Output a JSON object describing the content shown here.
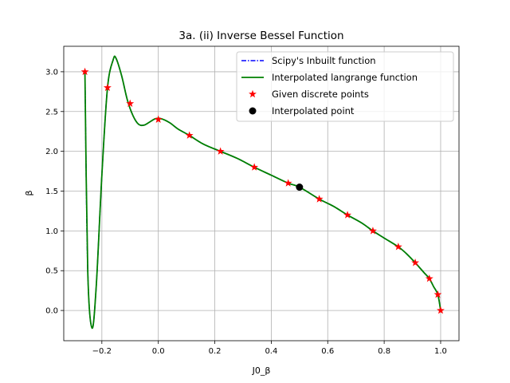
{
  "chart_data": {
    "type": "line",
    "title": "3a. (ii) Inverse Bessel Function",
    "xlabel": "J0_β",
    "ylabel": "β",
    "xlim": [
      -0.335,
      1.065
    ],
    "ylim": [
      -0.38,
      3.32
    ],
    "xticks": [
      -0.2,
      0.0,
      0.2,
      0.4,
      0.6,
      0.8,
      1.0
    ],
    "xtick_labels": [
      "−0.2",
      "0.0",
      "0.2",
      "0.4",
      "0.6",
      "0.8",
      "1.0"
    ],
    "yticks": [
      0.0,
      0.5,
      1.0,
      1.5,
      2.0,
      2.5,
      3.0
    ],
    "ytick_labels": [
      "0.0",
      "0.5",
      "1.0",
      "1.5",
      "2.0",
      "2.5",
      "3.0"
    ],
    "grid": true,
    "legend_position": "top-right",
    "series": [
      {
        "name": "Scipy's Inbuilt function",
        "kind": "line",
        "style": "dashdot",
        "color": "#0000ff",
        "x": [
          -0.26,
          -0.25,
          -0.235,
          -0.22,
          -0.2,
          -0.18,
          -0.16,
          -0.15,
          -0.13,
          -0.11,
          -0.09,
          -0.07,
          -0.05,
          -0.03,
          -0.01,
          0.01,
          0.04,
          0.07,
          0.11,
          0.16,
          0.22,
          0.28,
          0.34,
          0.4,
          0.46,
          0.5,
          0.57,
          0.62,
          0.67,
          0.72,
          0.76,
          0.8,
          0.85,
          0.88,
          0.91,
          0.94,
          0.96,
          0.975,
          0.99,
          1.0
        ],
        "y": [
          3.0,
          0.5,
          -0.22,
          0.3,
          1.7,
          2.8,
          3.15,
          3.17,
          2.95,
          2.65,
          2.45,
          2.34,
          2.33,
          2.37,
          2.41,
          2.41,
          2.36,
          2.28,
          2.2,
          2.09,
          2.0,
          1.91,
          1.8,
          1.7,
          1.6,
          1.55,
          1.4,
          1.31,
          1.2,
          1.1,
          1.0,
          0.91,
          0.8,
          0.71,
          0.6,
          0.48,
          0.4,
          0.3,
          0.2,
          0.0
        ]
      },
      {
        "name": "Interpolated langrange function",
        "kind": "line",
        "style": "solid",
        "color": "#008000",
        "x": [
          -0.26,
          -0.25,
          -0.235,
          -0.22,
          -0.2,
          -0.18,
          -0.16,
          -0.15,
          -0.13,
          -0.11,
          -0.09,
          -0.07,
          -0.05,
          -0.03,
          -0.01,
          0.01,
          0.04,
          0.07,
          0.11,
          0.16,
          0.22,
          0.28,
          0.34,
          0.4,
          0.46,
          0.5,
          0.57,
          0.62,
          0.67,
          0.72,
          0.76,
          0.8,
          0.85,
          0.88,
          0.91,
          0.94,
          0.96,
          0.975,
          0.99,
          1.0
        ],
        "y": [
          3.0,
          0.5,
          -0.22,
          0.3,
          1.7,
          2.8,
          3.15,
          3.17,
          2.95,
          2.65,
          2.45,
          2.34,
          2.33,
          2.37,
          2.41,
          2.41,
          2.36,
          2.28,
          2.2,
          2.09,
          2.0,
          1.91,
          1.8,
          1.7,
          1.6,
          1.55,
          1.4,
          1.31,
          1.2,
          1.1,
          1.0,
          0.91,
          0.8,
          0.71,
          0.6,
          0.48,
          0.4,
          0.3,
          0.2,
          0.0
        ]
      },
      {
        "name": "Given discrete points",
        "kind": "scatter",
        "marker": "star",
        "color": "#ff0000",
        "x": [
          -0.26,
          -0.18,
          -0.1,
          0.0,
          0.11,
          0.22,
          0.34,
          0.46,
          0.57,
          0.67,
          0.76,
          0.85,
          0.91,
          0.96,
          0.99,
          1.0
        ],
        "y": [
          3.0,
          2.8,
          2.6,
          2.4,
          2.2,
          2.0,
          1.8,
          1.6,
          1.4,
          1.2,
          1.0,
          0.8,
          0.6,
          0.4,
          0.2,
          0.0
        ]
      },
      {
        "name": "Interpolated point",
        "kind": "scatter",
        "marker": "circle",
        "color": "#000000",
        "x": [
          0.5
        ],
        "y": [
          1.55
        ]
      }
    ]
  }
}
